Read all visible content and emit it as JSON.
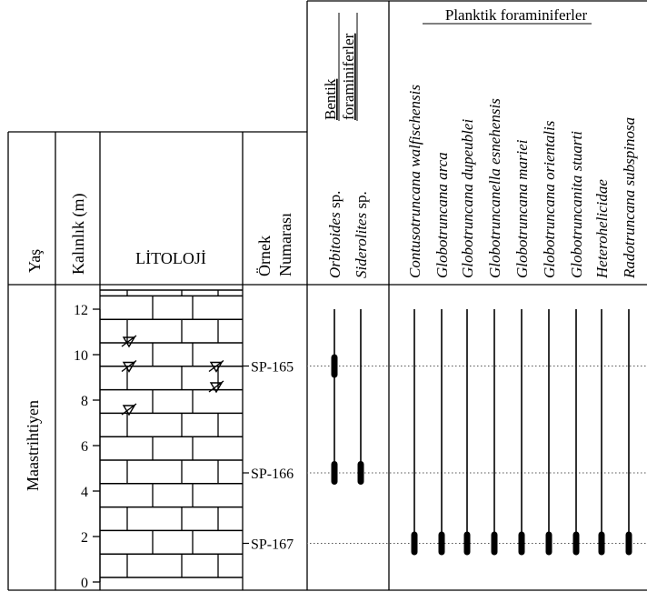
{
  "headers": {
    "age": "Yaş",
    "thickness": "Kalınlık (m)",
    "lithology": "LİTOLOJİ",
    "sample_line1": "Örnek",
    "sample_line2": "Numarası",
    "benthic_line1": "Bentik",
    "benthic_line2": "foraminiferler",
    "planktic": "Planktik foraminiferler"
  },
  "age_label": "Maastrihtiyen",
  "scale": {
    "min": 0,
    "max": 12,
    "ticks": [
      0,
      2,
      4,
      6,
      8,
      10,
      12
    ],
    "tick_labels": [
      "0",
      "2",
      "4",
      "6",
      "8",
      "10",
      "12"
    ]
  },
  "samples": [
    {
      "label": "SP-165",
      "level": 9.5
    },
    {
      "label": "SP-166",
      "level": 4.8
    },
    {
      "label": "SP-167",
      "level": 1.7
    }
  ],
  "fossil_marks": [
    {
      "level": 10.6,
      "col": 1
    },
    {
      "level": 9.5,
      "col": 2
    },
    {
      "level": 9.5,
      "col": 1
    },
    {
      "level": 8.6,
      "col": 2
    },
    {
      "level": 7.6,
      "col": 1
    }
  ],
  "benthic_species": [
    {
      "genus": "Orbitoides",
      "suffix": " sp.",
      "range_top": 12,
      "range_bottom": 4.5,
      "occurrences": [
        9.5,
        4.8
      ]
    },
    {
      "genus": "Siderolites",
      "suffix": " sp.",
      "range_top": 12,
      "range_bottom": 4.5,
      "occurrences": [
        4.8
      ]
    }
  ],
  "planktic_species": [
    {
      "name": "Contusotruncana walfischensis",
      "range_top": 12,
      "range_bottom": 1.3,
      "occurrences": [
        1.7
      ]
    },
    {
      "name": "Globotruncana arca",
      "range_top": 12,
      "range_bottom": 1.3,
      "occurrences": [
        1.7
      ]
    },
    {
      "name": "Globotruncana dupeublei",
      "range_top": 12,
      "range_bottom": 1.3,
      "occurrences": [
        1.7
      ]
    },
    {
      "name": "Globotruncanella esnehensis",
      "range_top": 12,
      "range_bottom": 1.3,
      "occurrences": [
        1.7
      ]
    },
    {
      "name": "Globotruncana mariei",
      "range_top": 12,
      "range_bottom": 1.3,
      "occurrences": [
        1.7
      ]
    },
    {
      "name": "Globotruncana orientalis",
      "range_top": 12,
      "range_bottom": 1.3,
      "occurrences": [
        1.7
      ]
    },
    {
      "name": "Globotruncanita stuarti",
      "range_top": 12,
      "range_bottom": 1.3,
      "occurrences": [
        1.7
      ]
    },
    {
      "name": "Heterohelicidae",
      "range_top": 12,
      "range_bottom": 1.3,
      "occurrences": [
        1.7
      ]
    },
    {
      "name": "Radotruncana subspinosa",
      "range_top": 12,
      "range_bottom": 1.3,
      "occurrences": [
        1.7
      ]
    }
  ],
  "colors": {
    "line": "#000000",
    "occurrence_bar": "#000000",
    "dotted_guide": "#555555"
  }
}
